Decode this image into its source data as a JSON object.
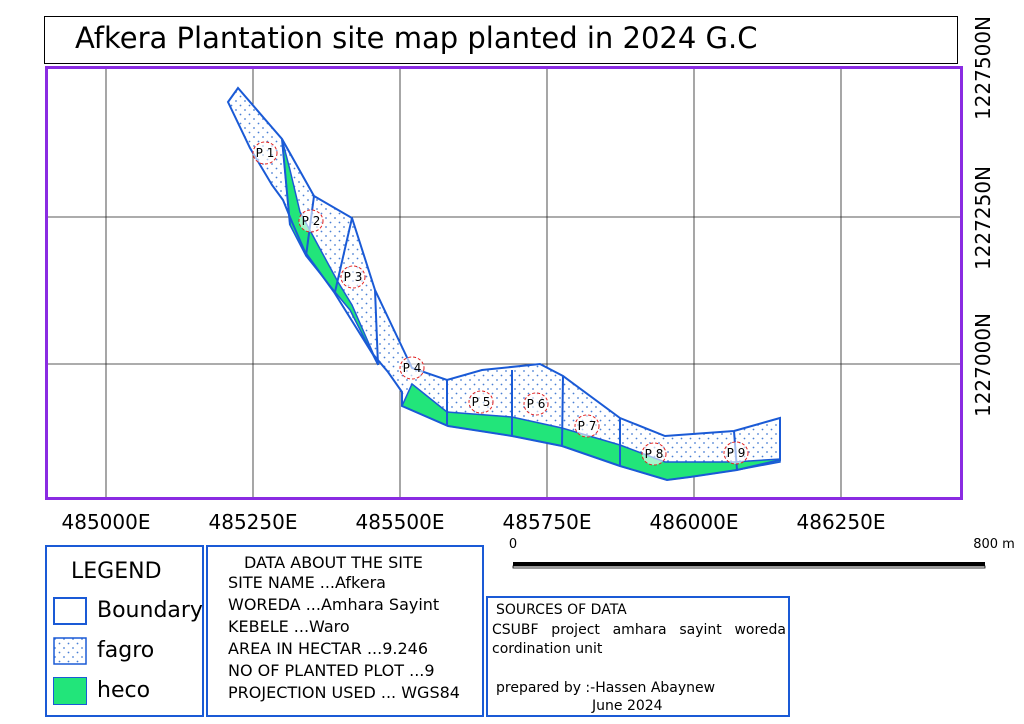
{
  "title": "Afkera Plantation site map planted in 2024 G.C",
  "grid_labels": {
    "easting": [
      "485000E",
      "485250E",
      "485500E",
      "485750E",
      "486000E",
      "486250E"
    ],
    "northing": [
      "1227500N",
      "1227250N",
      "1227000N"
    ]
  },
  "plots": [
    "P 1",
    "P 2",
    "P 3",
    "P 4",
    "P 5",
    "P 6",
    "P 7",
    "P 8",
    "P 9"
  ],
  "colors": {
    "frame": "#8a2be2",
    "boundary": "#1a5ad6",
    "fagro_dots": "#4a7fd4",
    "heco": "#22e57a",
    "plot_label_ring": "#e02020"
  },
  "legend": {
    "title": "LEGEND",
    "items": [
      {
        "label": "Boundary"
      },
      {
        "label": "fagro"
      },
      {
        "label": "heco"
      }
    ]
  },
  "site_data": {
    "title": "DATA ABOUT THE SITE",
    "rows": [
      "SITE NAME ...Afkera",
      "WOREDA ...Amhara Sayint",
      "KEBELE ...Waro",
      "AREA IN HECTAR ...9.246",
      "NO OF PLANTED PLOT ...9",
      "PROJECTION USED ... WGS84"
    ]
  },
  "sources": {
    "title": "SOURCES OF DATA",
    "body": "CSUBF project amhara sayint woreda cordination unit",
    "prepared_by": "prepared by :-Hassen Abaynew",
    "date": "June 2024"
  },
  "scale_bar": {
    "start_label": "0",
    "end_label": "800 m"
  }
}
